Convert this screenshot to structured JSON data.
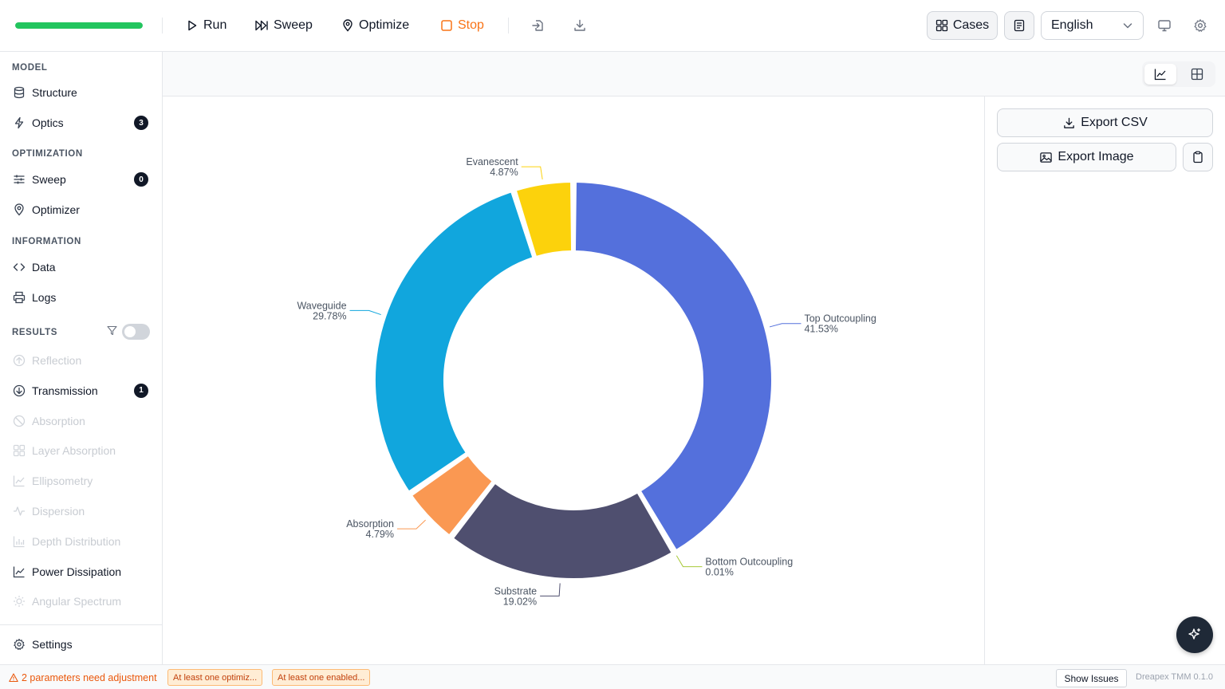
{
  "toolbar": {
    "progress": 1.0,
    "run_label": "Run",
    "sweep_label": "Sweep",
    "optimize_label": "Optimize",
    "stop_label": "Stop",
    "cases_label": "Cases",
    "language": "English",
    "accent_green": "#22c55e",
    "stop_color": "#f97316"
  },
  "sidebar": {
    "model_title": "MODEL",
    "structure": "Structure",
    "optics": "Optics",
    "optics_badge": "3",
    "optimization_title": "OPTIMIZATION",
    "sweep": "Sweep",
    "sweep_badge": "0",
    "optimizer": "Optimizer",
    "information_title": "INFORMATION",
    "data": "Data",
    "logs": "Logs",
    "results_title": "RESULTS",
    "results_filter_on": false,
    "results": [
      {
        "label": "Reflection",
        "icon": "arrow-up-circle-icon",
        "enabled": false
      },
      {
        "label": "Transmission",
        "icon": "arrow-down-circle-icon",
        "enabled": true,
        "badge": "1"
      },
      {
        "label": "Absorption",
        "icon": "ban-icon",
        "enabled": false
      },
      {
        "label": "Layer Absorption",
        "icon": "layout-grid-icon",
        "enabled": false
      },
      {
        "label": "Ellipsometry",
        "icon": "chart-line-icon",
        "enabled": false
      },
      {
        "label": "Dispersion",
        "icon": "activity-icon",
        "enabled": false
      },
      {
        "label": "Depth Distribution",
        "icon": "bar-chart-icon",
        "enabled": false
      },
      {
        "label": "Power Dissipation",
        "icon": "chart-line-icon",
        "enabled": true
      },
      {
        "label": "Angular Spectrum",
        "icon": "sun-icon",
        "enabled": false
      }
    ],
    "settings": "Settings"
  },
  "right_panel": {
    "export_csv": "Export CSV",
    "export_image": "Export Image"
  },
  "chart_data": {
    "type": "pie",
    "variant": "donut",
    "slices": [
      {
        "label": "Top Outcoupling",
        "value": 41.53,
        "display": "41.53%",
        "color": "#5470dc"
      },
      {
        "label": "Bottom Outcoupling",
        "value": 0.01,
        "display": "0.01%",
        "color": "#a8c93a"
      },
      {
        "label": "Substrate",
        "value": 19.02,
        "display": "19.02%",
        "color": "#4f4f6f"
      },
      {
        "label": "Absorption",
        "value": 4.79,
        "display": "4.79%",
        "color": "#fa9852"
      },
      {
        "label": "Waveguide",
        "value": 29.78,
        "display": "29.78%",
        "color": "#11a6dd"
      },
      {
        "label": "Evanescent",
        "value": 4.87,
        "display": "4.87%",
        "color": "#fcd20c"
      }
    ]
  },
  "status": {
    "warning": "2 parameters need adjustment",
    "chip1": "At least one optimiz...",
    "chip2": "At least one enabled...",
    "show_issues": "Show Issues",
    "version": "Dreapex TMM 0.1.0"
  }
}
